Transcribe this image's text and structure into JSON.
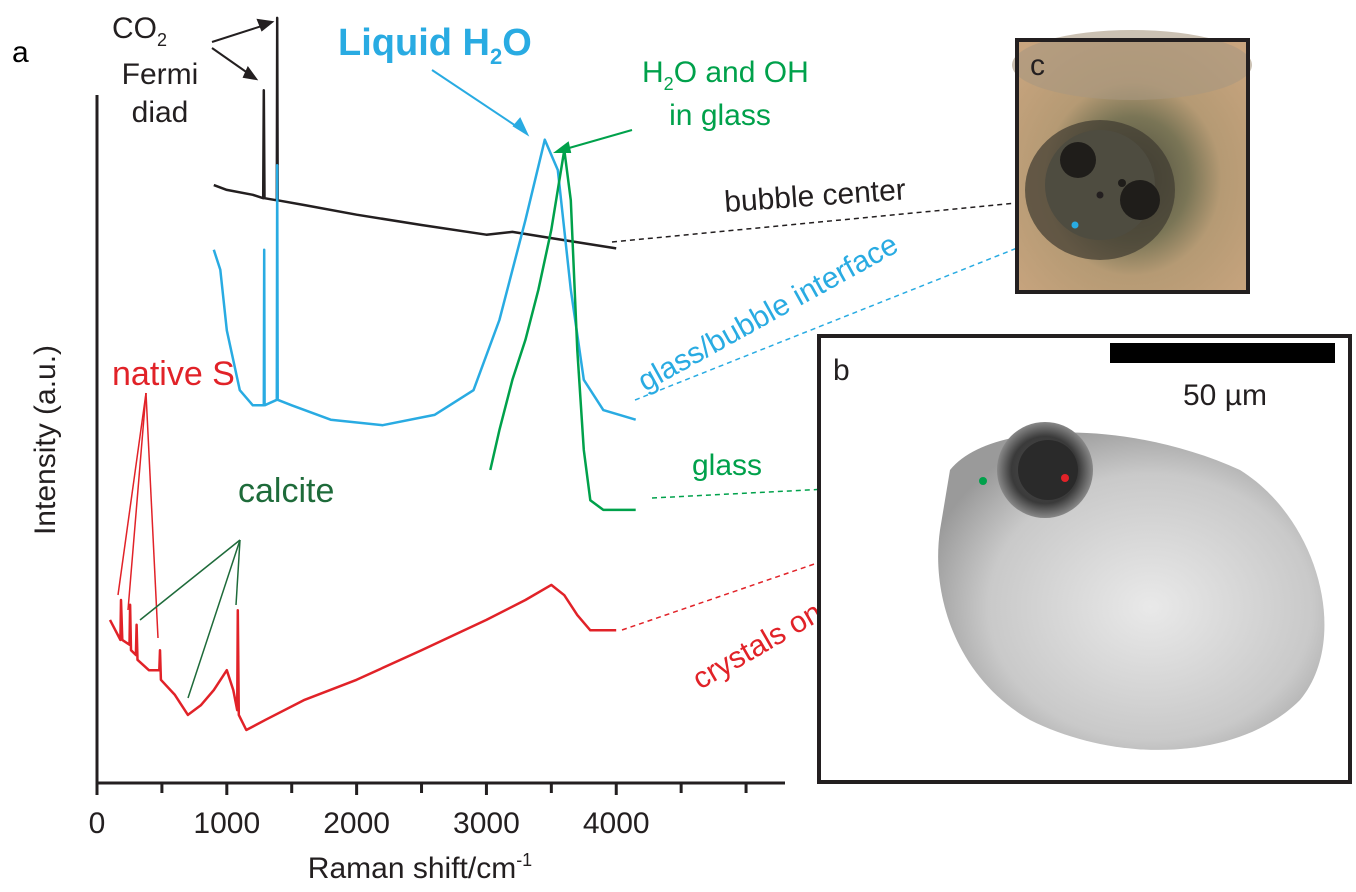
{
  "chart_data": {
    "type": "line",
    "panel_label": "a",
    "x_label": {
      "text": "Raman shift/cm",
      "sup": "-1"
    },
    "y_label": "Intensity (a.u.)",
    "xlim": [
      0,
      5300
    ],
    "xticks": [
      0,
      1000,
      2000,
      3000,
      4000
    ],
    "minor_xticks": [
      500,
      1500,
      2500,
      3500,
      4500,
      5000
    ],
    "ylim": [
      0,
      100
    ],
    "series": [
      {
        "name": "bubble center",
        "color": "#231f20",
        "x": [
          900,
          1000,
          1200,
          1280,
          1285,
          1290,
          1385,
          1388,
          1392,
          1600,
          2000,
          2500,
          3000,
          3200,
          3500,
          4000
        ],
        "values": [
          86.9,
          86.2,
          85.5,
          85.0,
          100.7,
          85.0,
          84.7,
          111.2,
          84.7,
          84.0,
          82.6,
          81.1,
          79.7,
          80.1,
          79.2,
          77.7
        ]
      },
      {
        "name": "glass/bubble interface",
        "color": "#29abe2",
        "x": [
          900,
          950,
          1000,
          1100,
          1200,
          1285,
          1288,
          1291,
          1385,
          1388,
          1392,
          1500,
          1800,
          2200,
          2600,
          2900,
          3100,
          3300,
          3450,
          3550,
          3650,
          3750,
          3900,
          4150
        ],
        "values": [
          77.5,
          74.6,
          65.8,
          57.1,
          54.9,
          54.9,
          77.5,
          54.9,
          55.7,
          89.8,
          55.7,
          54.9,
          52.8,
          52.0,
          53.5,
          57.1,
          67.3,
          81.8,
          93.5,
          89.1,
          71.7,
          58.6,
          54.2,
          52.8
        ]
      },
      {
        "name": "glass",
        "color": "#00a14b",
        "x": [
          3030,
          3100,
          3200,
          3300,
          3400,
          3500,
          3600,
          3650,
          3700,
          3750,
          3800,
          3900,
          4150
        ],
        "values": [
          45.5,
          51.3,
          58.6,
          64.4,
          71.7,
          80.4,
          92.0,
          84.7,
          62.9,
          48.4,
          41.1,
          39.7,
          39.7
        ]
      },
      {
        "name": "crystals on interface",
        "color": "#e12228",
        "x": [
          100,
          180,
          185,
          195,
          250,
          255,
          262,
          300,
          305,
          312,
          400,
          480,
          485,
          492,
          600,
          700,
          800,
          900,
          1000,
          1050,
          1080,
          1085,
          1092,
          1150,
          1300,
          1600,
          2000,
          2500,
          3000,
          3300,
          3500,
          3600,
          3700,
          3800,
          4000
        ],
        "values": [
          23.7,
          20.8,
          26.6,
          20.8,
          20.1,
          25.9,
          19.3,
          18.6,
          23.0,
          17.9,
          16.4,
          16.4,
          19.3,
          15.0,
          12.8,
          9.9,
          11.3,
          13.5,
          16.4,
          13.5,
          10.6,
          25.1,
          9.9,
          7.7,
          9.2,
          12.1,
          15.0,
          19.3,
          23.7,
          26.6,
          28.8,
          27.3,
          24.4,
          22.2,
          22.2
        ]
      }
    ],
    "annotations": {
      "co2": {
        "text": "CO",
        "sub": "2",
        "line2": "Fermi",
        "line3": "diad"
      },
      "liquid_h2o": {
        "text": "Liquid H",
        "sub": "2",
        "text2": "O"
      },
      "h2o_oh": {
        "text": "H",
        "sub": "2",
        "text2": "O and OH",
        "line2": "in glass"
      },
      "native_s": "native S",
      "calcite": "calcite"
    }
  },
  "panels": {
    "b": {
      "label": "b",
      "scale_bar": "50 µm"
    },
    "c": {
      "label": "c"
    }
  }
}
